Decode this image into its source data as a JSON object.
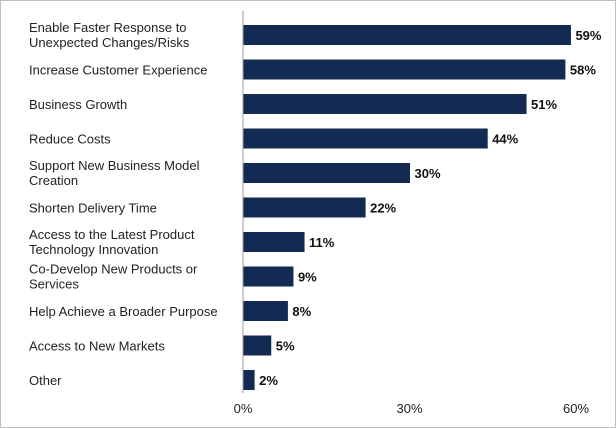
{
  "chart_data": {
    "type": "bar",
    "orientation": "horizontal",
    "categories": [
      [
        "Enable Faster Response to",
        "Unexpected Changes/Risks"
      ],
      [
        "Increase Customer Experience"
      ],
      [
        "Business Growth"
      ],
      [
        "Reduce Costs"
      ],
      [
        "Support New Business Model",
        "Creation"
      ],
      [
        "Shorten Delivery Time"
      ],
      [
        "Access to the Latest Product",
        "Technology Innovation"
      ],
      [
        "Co-Develop New Products or",
        "Services"
      ],
      [
        "Help Achieve a Broader Purpose"
      ],
      [
        "Access to New Markets"
      ],
      [
        "Other"
      ]
    ],
    "values": [
      59,
      58,
      51,
      44,
      30,
      22,
      11,
      9,
      8,
      5,
      2
    ],
    "value_labels": [
      "59%",
      "58%",
      "51%",
      "44%",
      "30%",
      "22%",
      "11%",
      "9%",
      "8%",
      "5%",
      "2%"
    ],
    "xlim": [
      0,
      60
    ],
    "x_ticks": [
      0,
      30,
      60
    ],
    "x_tick_labels": [
      "0%",
      "30%",
      "60%"
    ],
    "bar_color": "#132a52",
    "axis_color": "#9e9e9e",
    "grid": false,
    "legend": false
  }
}
